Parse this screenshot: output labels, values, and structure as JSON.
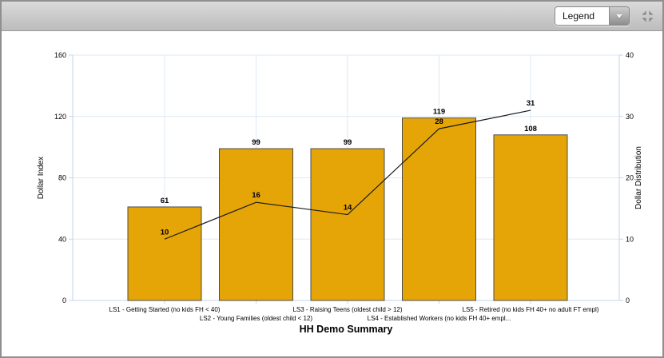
{
  "toolbar": {
    "dropdown_value": "Legend"
  },
  "chart_data": {
    "type": "bar",
    "subtype": "bar+line combo, dual axis",
    "categories": [
      "LS1 - Getting Started (no kids FH < 40)",
      "LS2 - Young Families (oldest child < 12)",
      "LS3 - Raising Teens (oldest child > 12)",
      "LS4 - Established Workers (no kids FH 40+ empl...",
      "LS5 - Retired (no kids FH 40+ no adult FT empl)"
    ],
    "series": [
      {
        "name": "Dollar Index",
        "type": "bar",
        "axis": "left",
        "color": "#E5A507",
        "border_color": "#4d4d4d",
        "values": [
          61,
          99,
          99,
          119,
          108
        ]
      },
      {
        "name": "Dollar Distribution",
        "type": "line",
        "axis": "right",
        "color": "#1b1b1b",
        "values": [
          10,
          16,
          14,
          28,
          31
        ]
      }
    ],
    "title": "",
    "xlabel": "HH Demo Summary",
    "ylabel_left": "Dollar Index",
    "ylabel_right": "Dollar Distribution",
    "y_left": {
      "min": 0,
      "max": 160,
      "ticks": [
        0,
        40,
        80,
        120,
        160
      ]
    },
    "y_right": {
      "min": 0,
      "max": 40,
      "ticks": [
        0,
        10,
        20,
        30,
        40
      ]
    },
    "grid": true,
    "grid_color": "#dde9f4",
    "axis_color": "#c2d6e8",
    "legend_position": "collapsed-dropdown"
  }
}
